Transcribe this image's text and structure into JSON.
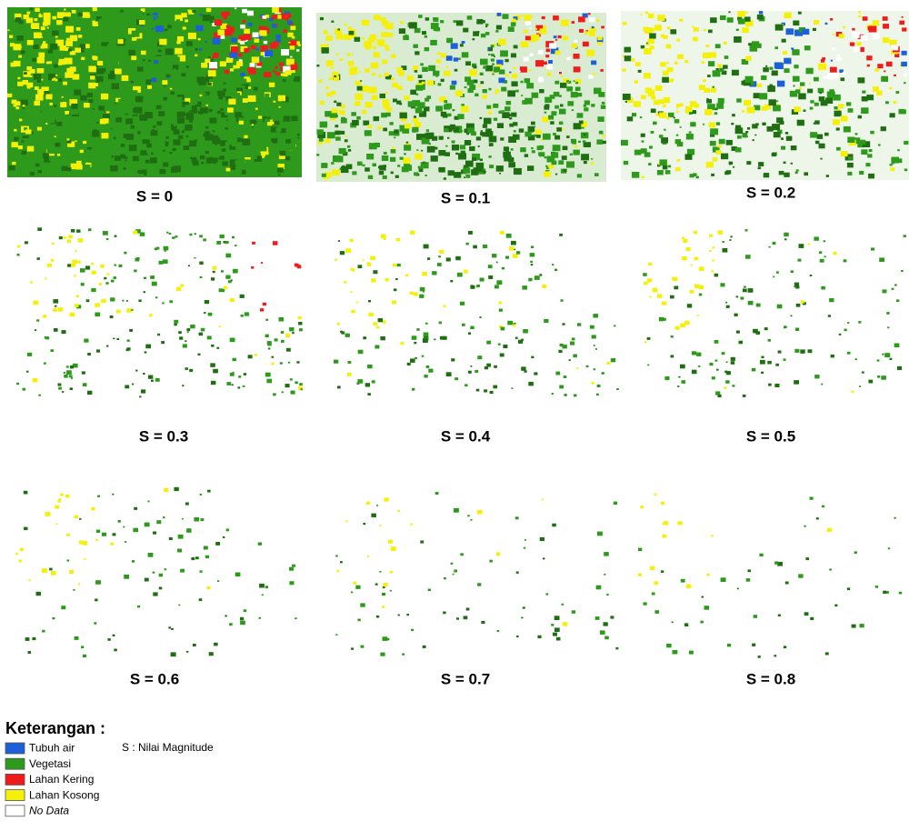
{
  "figure": {
    "panels": [
      {
        "label": "S = 0"
      },
      {
        "label": "S = 0.1"
      },
      {
        "label": "S = 0.2"
      },
      {
        "label": "S = 0.3"
      },
      {
        "label": "S = 0.4"
      },
      {
        "label": "S = 0.5"
      },
      {
        "label": "S = 0.6"
      },
      {
        "label": "S = 0.7"
      },
      {
        "label": "S = 0.8"
      }
    ],
    "legend": {
      "title": "Keterangan :",
      "items": [
        {
          "label": "Tubuh air",
          "color": "#1c5fd8"
        },
        {
          "label": "Vegetasi",
          "color": "#2e9a1c"
        },
        {
          "label": "Lahan Kering",
          "color": "#ee1c1c"
        },
        {
          "label": "Lahan Kosong",
          "color": "#f5f00a"
        },
        {
          "label": "No Data",
          "color": "#ffffff"
        }
      ],
      "note": "S : Nilai Magnitude"
    }
  }
}
